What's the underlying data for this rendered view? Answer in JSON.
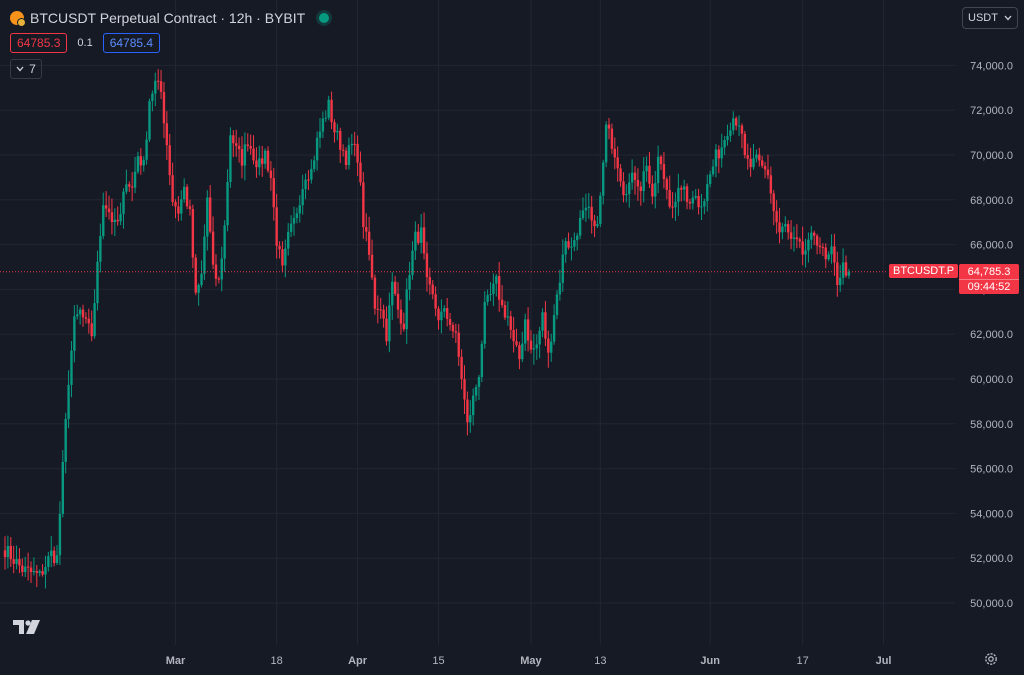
{
  "header": {
    "title": "BTCUSDT Perpetual Contract · 12h · BYBIT",
    "sell_price": "64785.3",
    "spread": "0.1",
    "buy_price": "64785.4",
    "indicator_count": "7",
    "currency": "USDT"
  },
  "last_price": {
    "symbol_label": "BTCUSDT.P",
    "price": "64,785.3",
    "countdown": "09:44:52"
  },
  "icons": {
    "logo": "bitcoin-coin-icon",
    "status": "market-open-dot-icon",
    "chevron": "chevron-down-icon",
    "brand": "tradingview-logo-icon",
    "settings": "gear-icon"
  },
  "colors": {
    "background": "#161a25",
    "up": "#089981",
    "down": "#f23645",
    "grid": "#232632"
  },
  "chart_data": {
    "type": "candlestick",
    "symbol": "BTCUSDT.P",
    "interval": "12h",
    "y_ticks": [
      50000,
      52000,
      54000,
      56000,
      58000,
      60000,
      62000,
      64000,
      66000,
      68000,
      70000,
      72000,
      74000
    ],
    "y_tick_labels": [
      "50,000.0",
      "52,000.0",
      "54,000.0",
      "56,000.0",
      "58,000.0",
      "60,000.0",
      "62,000.0",
      "64,000.0",
      "66,000.0",
      "68,000.0",
      "70,000.0",
      "72,000.0",
      "74,000.0"
    ],
    "x_ticks": [
      {
        "label": "Mar",
        "day": 29.5,
        "bold": true
      },
      {
        "label": "18",
        "day": 47
      },
      {
        "label": "Apr",
        "day": 61,
        "bold": true
      },
      {
        "label": "15",
        "day": 75
      },
      {
        "label": "May",
        "day": 91,
        "bold": true
      },
      {
        "label": "13",
        "day": 103
      },
      {
        "label": "Jun",
        "day": 122,
        "bold": true
      },
      {
        "label": "17",
        "day": 138
      },
      {
        "label": "Jul",
        "day": 152,
        "bold": true
      }
    ],
    "last_price": 64785.3,
    "close_path": [
      [
        0,
        52400
      ],
      [
        3,
        51500
      ],
      [
        6,
        51200
      ],
      [
        8,
        52200
      ],
      [
        9,
        52000
      ],
      [
        10,
        56000
      ],
      [
        11,
        60000
      ],
      [
        12,
        62500
      ],
      [
        13,
        63000
      ],
      [
        14,
        62400
      ],
      [
        15,
        62000
      ],
      [
        16,
        65000
      ],
      [
        17,
        68000
      ],
      [
        18,
        67500
      ],
      [
        19,
        66800
      ],
      [
        20,
        67200
      ],
      [
        21,
        69000
      ],
      [
        22,
        68500
      ],
      [
        23,
        70000
      ],
      [
        24,
        69500
      ],
      [
        25,
        72500
      ],
      [
        26,
        73200
      ],
      [
        27,
        72800
      ],
      [
        28,
        70500
      ],
      [
        29,
        68000
      ],
      [
        30,
        67500
      ],
      [
        31,
        68500
      ],
      [
        32,
        67300
      ],
      [
        33,
        63600
      ],
      [
        34,
        64600
      ],
      [
        35,
        68100
      ],
      [
        36,
        64800
      ],
      [
        37,
        64300
      ],
      [
        38,
        66800
      ],
      [
        39,
        71000
      ],
      [
        40,
        70200
      ],
      [
        41,
        69800
      ],
      [
        42,
        70700
      ],
      [
        43,
        70000
      ],
      [
        44,
        69500
      ],
      [
        45,
        70100
      ],
      [
        46,
        69000
      ],
      [
        47,
        66200
      ],
      [
        48,
        64800
      ],
      [
        49,
        66300
      ],
      [
        50,
        67000
      ],
      [
        51,
        68100
      ],
      [
        52,
        69200
      ],
      [
        53,
        69300
      ],
      [
        54,
        70600
      ],
      [
        55,
        71500
      ],
      [
        56,
        72200
      ],
      [
        57,
        71100
      ],
      [
        58,
        70500
      ],
      [
        59,
        69900
      ],
      [
        60,
        70400
      ],
      [
        61,
        70000
      ],
      [
        62,
        67000
      ],
      [
        63,
        65500
      ],
      [
        64,
        63300
      ],
      [
        65,
        63300
      ],
      [
        66,
        62000
      ],
      [
        67,
        64200
      ],
      [
        68,
        63100
      ],
      [
        69,
        62500
      ],
      [
        70,
        64900
      ],
      [
        71,
        66300
      ],
      [
        72,
        66500
      ],
      [
        73,
        64200
      ],
      [
        74,
        63600
      ],
      [
        75,
        62800
      ],
      [
        76,
        62900
      ],
      [
        77,
        62600
      ],
      [
        78,
        61800
      ],
      [
        79,
        60100
      ],
      [
        80,
        57900
      ],
      [
        81,
        59100
      ],
      [
        82,
        60300
      ],
      [
        83,
        63100
      ],
      [
        84,
        63700
      ],
      [
        85,
        64300
      ],
      [
        86,
        63200
      ],
      [
        87,
        62800
      ],
      [
        88,
        61500
      ],
      [
        89,
        60900
      ],
      [
        90,
        62700
      ],
      [
        91,
        61200
      ],
      [
        92,
        61500
      ],
      [
        93,
        62800
      ],
      [
        94,
        61000
      ],
      [
        95,
        63000
      ],
      [
        96,
        64500
      ],
      [
        97,
        66300
      ],
      [
        98,
        65800
      ],
      [
        99,
        66700
      ],
      [
        100,
        67300
      ],
      [
        101,
        67400
      ],
      [
        102,
        66500
      ],
      [
        103,
        68000
      ],
      [
        104,
        71200
      ],
      [
        105,
        70600
      ],
      [
        106,
        69700
      ],
      [
        107,
        68500
      ],
      [
        108,
        68700
      ],
      [
        109,
        69100
      ],
      [
        110,
        68600
      ],
      [
        111,
        69700
      ],
      [
        112,
        67800
      ],
      [
        113,
        69800
      ],
      [
        114,
        69000
      ],
      [
        115,
        68000
      ],
      [
        116,
        67700
      ],
      [
        117,
        68700
      ],
      [
        118,
        67900
      ],
      [
        119,
        68300
      ],
      [
        120,
        67900
      ],
      [
        121,
        68100
      ],
      [
        122,
        69100
      ],
      [
        123,
        69900
      ],
      [
        124,
        70400
      ],
      [
        125,
        71200
      ],
      [
        126,
        71700
      ],
      [
        127,
        71500
      ],
      [
        128,
        69800
      ],
      [
        129,
        69500
      ],
      [
        130,
        69700
      ],
      [
        131,
        69400
      ],
      [
        132,
        69200
      ],
      [
        133,
        67500
      ],
      [
        134,
        66500
      ],
      [
        135,
        66800
      ],
      [
        136,
        66100
      ],
      [
        137,
        66000
      ],
      [
        138,
        65600
      ],
      [
        139,
        65900
      ],
      [
        140,
        66500
      ],
      [
        141,
        66000
      ],
      [
        142,
        65200
      ],
      [
        143,
        65600
      ],
      [
        144,
        64400
      ],
      [
        145,
        65000
      ],
      [
        146,
        64785.3
      ]
    ]
  }
}
